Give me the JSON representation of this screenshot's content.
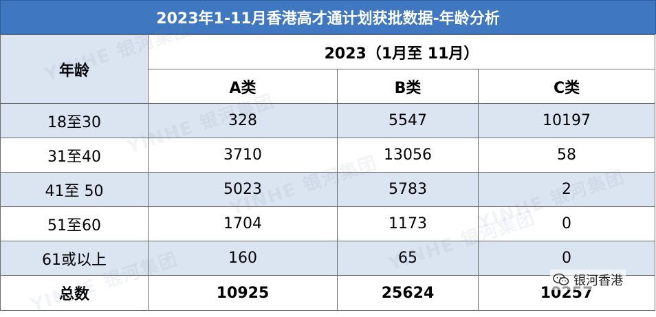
{
  "title": "2023年1-11月香港高才通计划获批数据-年龄分析",
  "table": {
    "corner_header": "年龄",
    "group_header": "2023（1月至 11月）",
    "columns": [
      "A类",
      "B类",
      "C类"
    ],
    "rows": [
      {
        "age": "18至30",
        "a": "328",
        "b": "5547",
        "c": "10197"
      },
      {
        "age": "31至40",
        "a": "3710",
        "b": "13056",
        "c": "58"
      },
      {
        "age": "41至 50",
        "a": "5023",
        "b": "5783",
        "c": "2"
      },
      {
        "age": "51至60",
        "a": "1704",
        "b": "1173",
        "c": "0"
      },
      {
        "age": "61或以上",
        "a": "160",
        "b": "65",
        "c": "0"
      }
    ],
    "total": {
      "label": "总数",
      "a": "10925",
      "b": "25624",
      "c": "10257"
    }
  },
  "watermark": {
    "text": "YINHE 银河集团"
  },
  "account": {
    "name": "银河香港",
    "icon": "wechat-icon"
  },
  "colors": {
    "title_bg": "#3f78c1",
    "header_bg": "#dbe4f1",
    "band_bg": "#dbe4f1",
    "border": "#6b6b6b"
  }
}
